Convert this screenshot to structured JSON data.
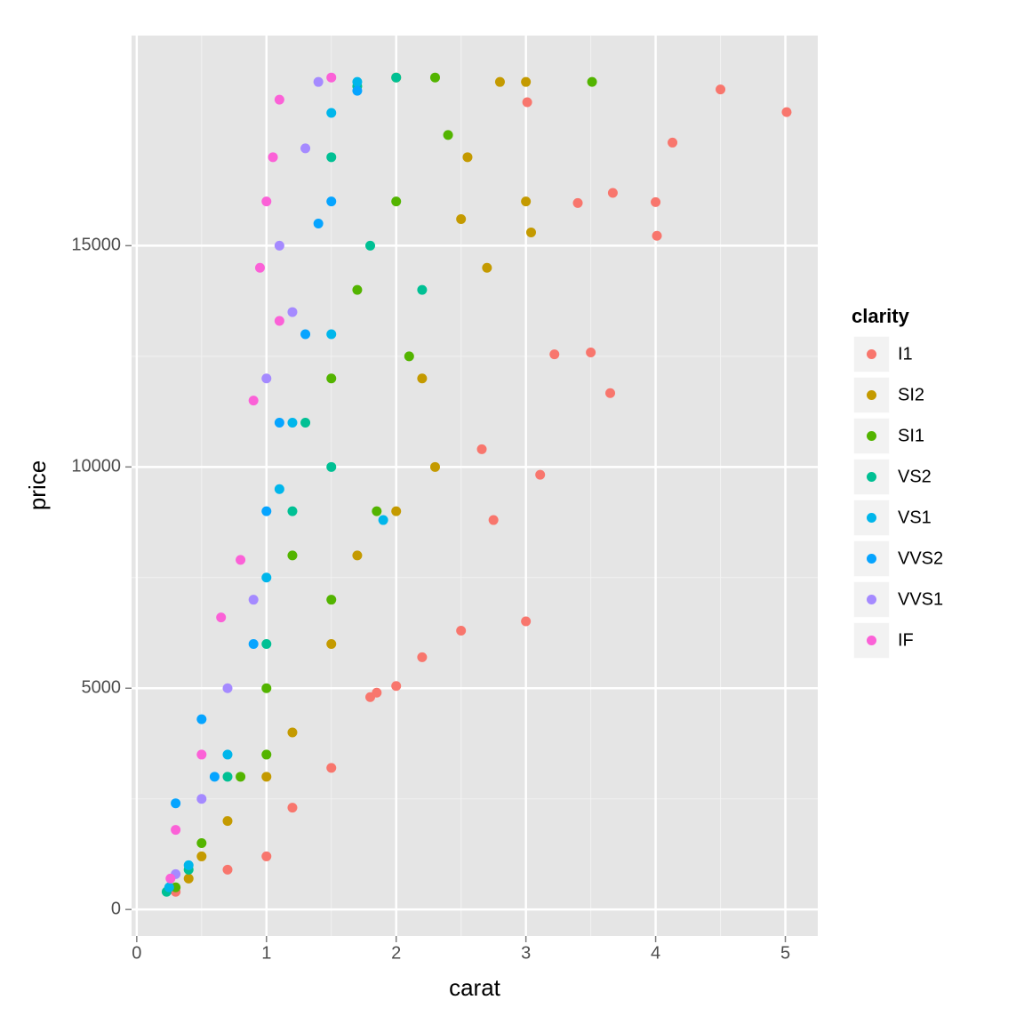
{
  "chart_data": {
    "type": "scatter",
    "x_label": "carat",
    "y_label": "price",
    "legend_title": "clarity",
    "legend_position": "right",
    "grid": true,
    "xlim": [
      -0.04,
      5.25
    ],
    "ylim": [
      -599,
      19748
    ],
    "xticks": [
      0,
      1,
      2,
      3,
      4,
      5
    ],
    "yticks": [
      0,
      5000,
      10000,
      15000
    ],
    "series": [
      {
        "name": "I1",
        "color": "#F8766D",
        "x": [
          5.01,
          4.5,
          4.13,
          4.01,
          4.0,
          3.67,
          3.4,
          3.65,
          3.5,
          3.22,
          3.01,
          2.5,
          2.0,
          1.5,
          1.0,
          0.7,
          3.0,
          3.11,
          2.75,
          2.2,
          1.8,
          1.2,
          0.3,
          2.66,
          1.85
        ],
        "values": [
          18018,
          18531,
          17329,
          15223,
          15984,
          16193,
          15964,
          11668,
          12587,
          12545,
          18242,
          6300,
          5051,
          3200,
          1200,
          900,
          6512,
          9823,
          8800,
          5700,
          4800,
          2300,
          400,
          10400,
          4900
        ]
      },
      {
        "name": "SI2",
        "color": "#C49A00",
        "x": [
          3.0,
          2.8,
          3.0,
          2.5,
          2.2,
          2.0,
          2.0,
          1.5,
          1.2,
          1.0,
          0.7,
          0.4,
          2.3,
          1.7,
          2.55,
          3.04,
          2.7,
          0.5
        ],
        "values": [
          18700,
          18700,
          16000,
          15600,
          12000,
          18800,
          9000,
          6000,
          4000,
          3000,
          2000,
          700,
          10000,
          8000,
          17000,
          15300,
          14500,
          1200
        ]
      },
      {
        "name": "SI1",
        "color": "#53B400",
        "x": [
          3.51,
          2.3,
          2.0,
          1.7,
          1.5,
          1.2,
          1.0,
          0.8,
          0.5,
          0.3,
          2.1,
          1.5,
          1.0,
          1.85,
          2.4
        ],
        "values": [
          18701,
          18800,
          16000,
          14000,
          12000,
          8000,
          5000,
          3000,
          1500,
          500,
          12500,
          7000,
          3500,
          9000,
          17500
        ]
      },
      {
        "name": "VS2",
        "color": "#00C094",
        "x": [
          2.0,
          1.7,
          1.5,
          1.5,
          1.2,
          1.0,
          0.7,
          0.4,
          0.23,
          1.8,
          1.3,
          2.2
        ],
        "values": [
          18800,
          18600,
          17000,
          10000,
          9000,
          6000,
          3000,
          900,
          400,
          15000,
          11000,
          14000
        ]
      },
      {
        "name": "VS1",
        "color": "#00B6EB",
        "x": [
          1.7,
          1.5,
          1.5,
          1.2,
          1.0,
          0.7,
          0.4,
          1.9,
          1.1,
          0.25
        ],
        "values": [
          18700,
          18000,
          13000,
          11000,
          7500,
          3500,
          1000,
          8800,
          9500,
          500
        ]
      },
      {
        "name": "VVS2",
        "color": "#06A4FF",
        "x": [
          1.7,
          1.5,
          1.3,
          1.1,
          1.0,
          0.9,
          0.6,
          0.3,
          0.5,
          1.4
        ],
        "values": [
          18500,
          16000,
          13000,
          11000,
          9000,
          6000,
          3000,
          2400,
          4300,
          15500
        ]
      },
      {
        "name": "VVS1",
        "color": "#A58AFF",
        "x": [
          1.4,
          1.3,
          1.1,
          1.0,
          0.9,
          0.7,
          0.5,
          0.3,
          1.2
        ],
        "values": [
          18700,
          17200,
          15000,
          12000,
          7000,
          5000,
          2500,
          800,
          13500
        ]
      },
      {
        "name": "IF",
        "color": "#FB61D7",
        "x": [
          1.5,
          1.1,
          1.05,
          1.0,
          0.95,
          1.1,
          0.9,
          0.8,
          0.65,
          0.5,
          0.3,
          0.26
        ],
        "values": [
          18800,
          18300,
          17000,
          16000,
          14500,
          13300,
          11500,
          7900,
          6600,
          3500,
          1800,
          700
        ]
      }
    ]
  }
}
